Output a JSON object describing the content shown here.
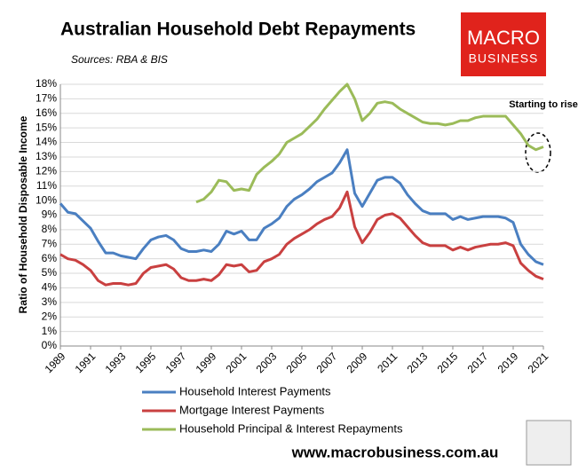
{
  "chart_data": {
    "type": "line",
    "title": "Australian Household Debt Repayments",
    "subtitle": "Sources: RBA & BIS",
    "y_label": "Ratio of Household Disposable Income",
    "annotation": "Starting to rise",
    "logo": [
      "MACRO",
      "BUSINESS"
    ],
    "footer": "www.macrobusiness.com.au",
    "x": [
      1989,
      1989.5,
      1990,
      1990.5,
      1991,
      1991.5,
      1992,
      1992.5,
      1993,
      1993.5,
      1994,
      1994.5,
      1995,
      1995.5,
      1996,
      1996.5,
      1997,
      1997.5,
      1998,
      1998.5,
      1999,
      1999.5,
      2000,
      2000.5,
      2001,
      2001.5,
      2002,
      2002.5,
      2003,
      2003.5,
      2004,
      2004.5,
      2005,
      2005.5,
      2006,
      2006.5,
      2007,
      2007.5,
      2008,
      2008.5,
      2009,
      2009.5,
      2010,
      2010.5,
      2011,
      2011.5,
      2012,
      2012.5,
      2013,
      2013.5,
      2014,
      2014.5,
      2015,
      2015.5,
      2016,
      2016.5,
      2017,
      2017.5,
      2018,
      2018.5,
      2019,
      2019.5,
      2020,
      2020.5,
      2021
    ],
    "series": [
      {
        "name": "Household Interest Payments",
        "color": "#4a7fc1",
        "values": [
          9.8,
          9.2,
          9.1,
          8.6,
          8.1,
          7.2,
          6.4,
          6.4,
          6.2,
          6.1,
          6.0,
          6.7,
          7.3,
          7.5,
          7.6,
          7.3,
          6.7,
          6.5,
          6.5,
          6.6,
          6.5,
          7.0,
          7.9,
          7.7,
          7.9,
          7.3,
          7.3,
          8.1,
          8.4,
          8.8,
          9.6,
          10.1,
          10.4,
          10.8,
          11.3,
          11.6,
          11.9,
          12.6,
          13.5,
          10.5,
          9.6,
          10.5,
          11.4,
          11.6,
          11.6,
          11.2,
          10.4,
          9.8,
          9.3,
          9.1,
          9.1,
          9.1,
          8.7,
          8.9,
          8.7,
          8.8,
          8.9,
          8.9,
          8.9,
          8.8,
          8.5,
          7.0,
          6.3,
          5.8,
          5.6
        ]
      },
      {
        "name": "Mortgage Interest Payments",
        "color": "#c94040",
        "values": [
          6.3,
          6.0,
          5.9,
          5.6,
          5.2,
          4.5,
          4.2,
          4.3,
          4.3,
          4.2,
          4.3,
          5.0,
          5.4,
          5.5,
          5.6,
          5.3,
          4.7,
          4.5,
          4.5,
          4.6,
          4.5,
          4.9,
          5.6,
          5.5,
          5.6,
          5.1,
          5.2,
          5.8,
          6.0,
          6.3,
          7.0,
          7.4,
          7.7,
          8.0,
          8.4,
          8.7,
          8.9,
          9.5,
          10.6,
          8.2,
          7.1,
          7.8,
          8.7,
          9.0,
          9.1,
          8.8,
          8.2,
          7.6,
          7.1,
          6.9,
          6.9,
          6.9,
          6.6,
          6.8,
          6.6,
          6.8,
          6.9,
          7.0,
          7.0,
          7.1,
          6.9,
          5.7,
          5.2,
          4.8,
          4.6
        ]
      },
      {
        "name": "Household Principal & Interest Repayments",
        "color": "#9bbb59",
        "values": [
          null,
          null,
          null,
          null,
          null,
          null,
          null,
          null,
          null,
          null,
          null,
          null,
          null,
          null,
          null,
          null,
          null,
          null,
          9.9,
          10.1,
          10.6,
          11.4,
          11.3,
          10.7,
          10.8,
          10.7,
          11.8,
          12.3,
          12.7,
          13.2,
          14.0,
          14.3,
          14.6,
          15.1,
          15.6,
          16.3,
          16.9,
          17.5,
          18.0,
          17.0,
          15.5,
          16.0,
          16.7,
          16.8,
          16.7,
          16.3,
          16.0,
          15.7,
          15.4,
          15.3,
          15.3,
          15.2,
          15.3,
          15.5,
          15.5,
          15.7,
          15.8,
          15.8,
          15.8,
          15.8,
          15.2,
          14.6,
          13.8,
          13.5,
          13.7
        ]
      }
    ],
    "xlim": [
      1989,
      2021
    ],
    "xticks": [
      1989,
      1991,
      1993,
      1995,
      1997,
      1999,
      2001,
      2003,
      2005,
      2007,
      2009,
      2011,
      2013,
      2015,
      2017,
      2019,
      2021
    ],
    "ylim": [
      0,
      18
    ],
    "yticks": [
      {
        "value": 0,
        "label": "0%"
      },
      {
        "value": 1,
        "label": "1%"
      },
      {
        "value": 2,
        "label": "2%"
      },
      {
        "value": 3,
        "label": "3%"
      },
      {
        "value": 4,
        "label": "4%"
      },
      {
        "value": 5,
        "label": "5%"
      },
      {
        "value": 6,
        "label": "6%"
      },
      {
        "value": 7,
        "label": "7%"
      },
      {
        "value": 8,
        "label": "8%"
      },
      {
        "value": 9,
        "label": "9%"
      },
      {
        "value": 10,
        "label": "10%"
      },
      {
        "value": 11,
        "label": "11%"
      },
      {
        "value": 12,
        "label": "12%"
      },
      {
        "value": 13,
        "label": "13%"
      },
      {
        "value": 14,
        "label": "14%"
      },
      {
        "value": 15,
        "label": "15%"
      },
      {
        "value": 16,
        "label": "16%"
      },
      {
        "value": 17,
        "label": "17%"
      },
      {
        "value": 18,
        "label": "18%"
      }
    ],
    "grid": true
  }
}
